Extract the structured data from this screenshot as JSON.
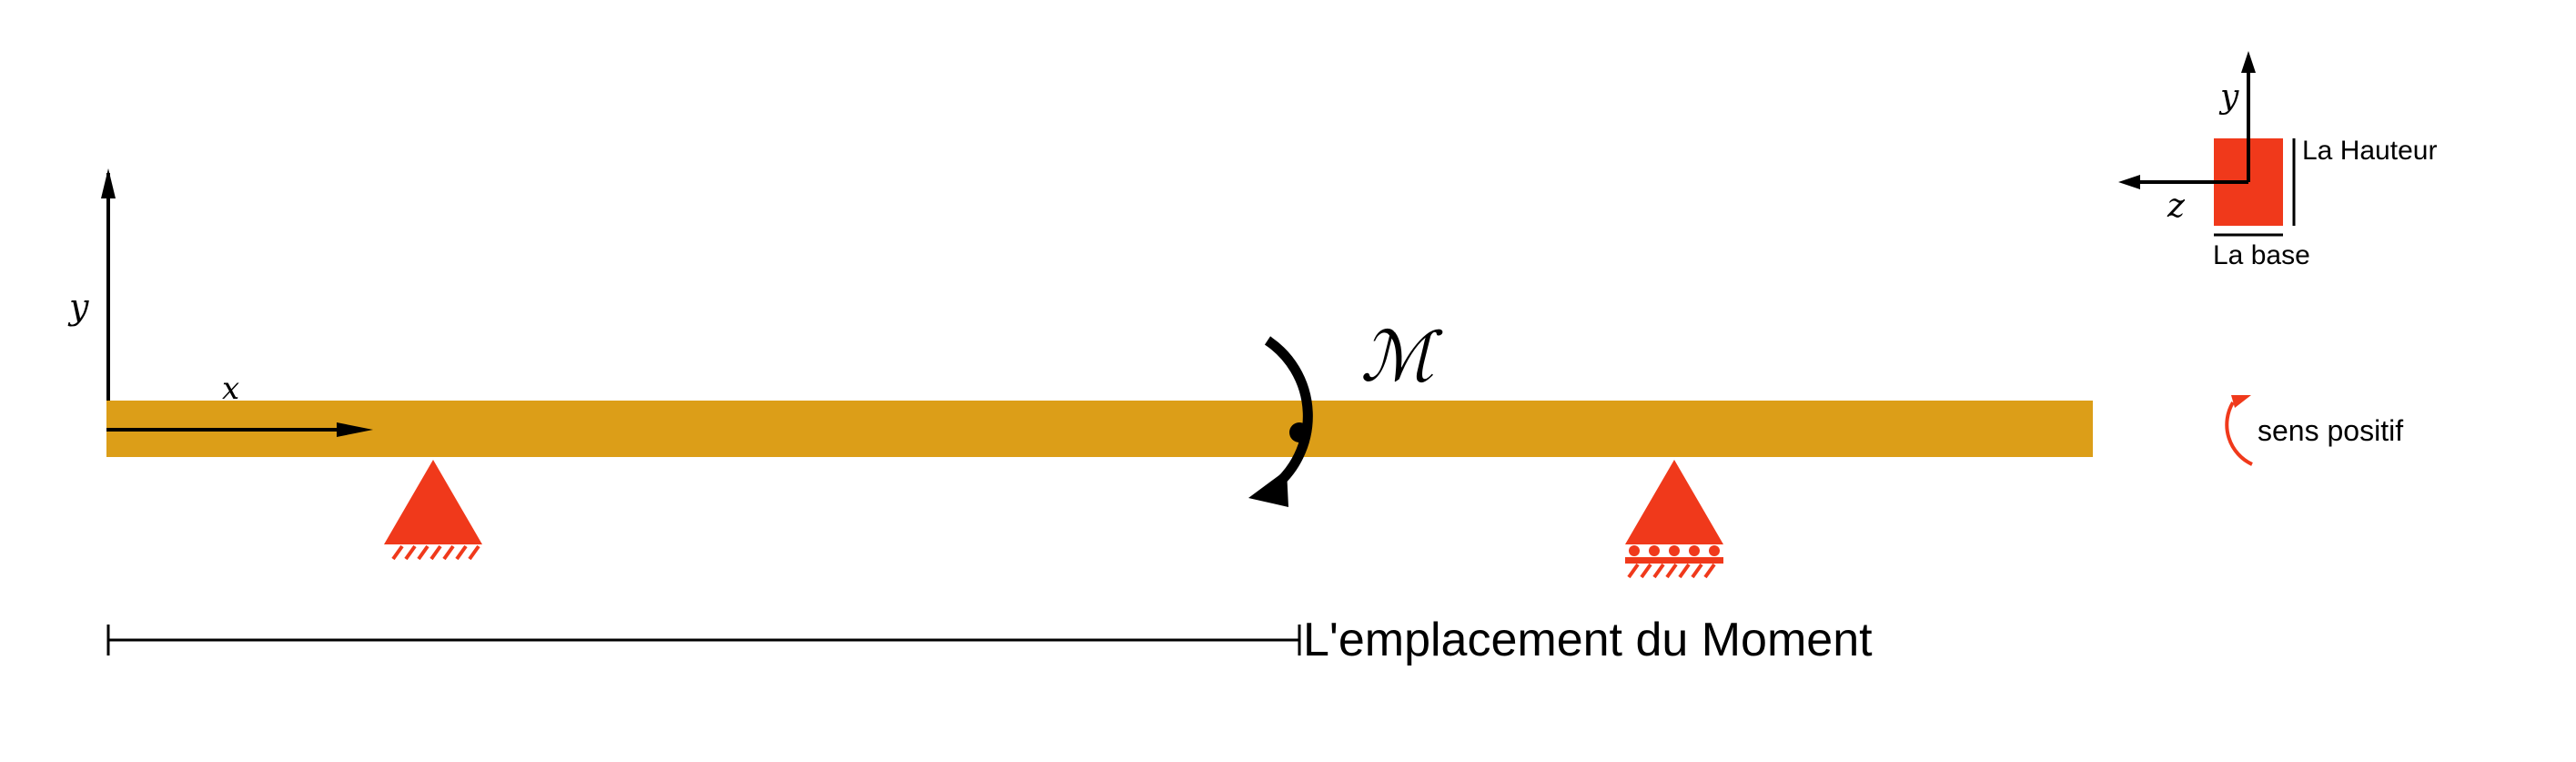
{
  "axes": {
    "y_label": "y",
    "x_label": "x"
  },
  "moment": {
    "label": "ℳ"
  },
  "dimension": {
    "label": "L'emplacement du Moment"
  },
  "section": {
    "y_label": "y",
    "z_label": "z",
    "height_label": "La Hauteur",
    "base_label": "La base"
  },
  "sign_convention": {
    "label": "sens positif"
  },
  "colors": {
    "beam": "#DC9E18",
    "support": "#F0391B",
    "ink": "#000000",
    "section_fill": "#F0391B"
  }
}
